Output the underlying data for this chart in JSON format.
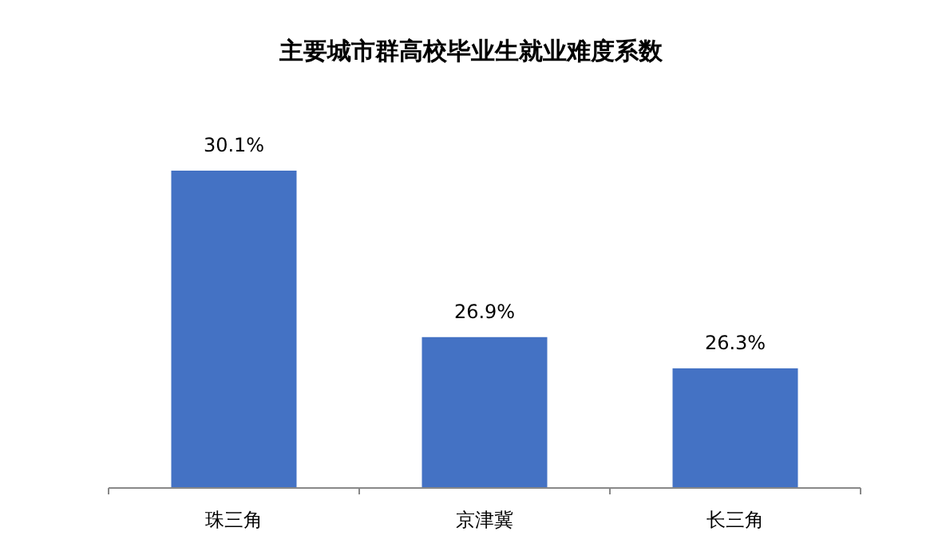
{
  "chart_data": {
    "type": "bar",
    "title": "主要城市群高校毕业生就业难度系数",
    "categories": [
      "珠三角",
      "京津冀",
      "长三角"
    ],
    "values": [
      30.1,
      26.9,
      26.3
    ],
    "value_labels": [
      "30.1%",
      "26.9%",
      "26.3%"
    ],
    "color": "#4472c4",
    "ylim": [
      24,
      30.1
    ]
  }
}
